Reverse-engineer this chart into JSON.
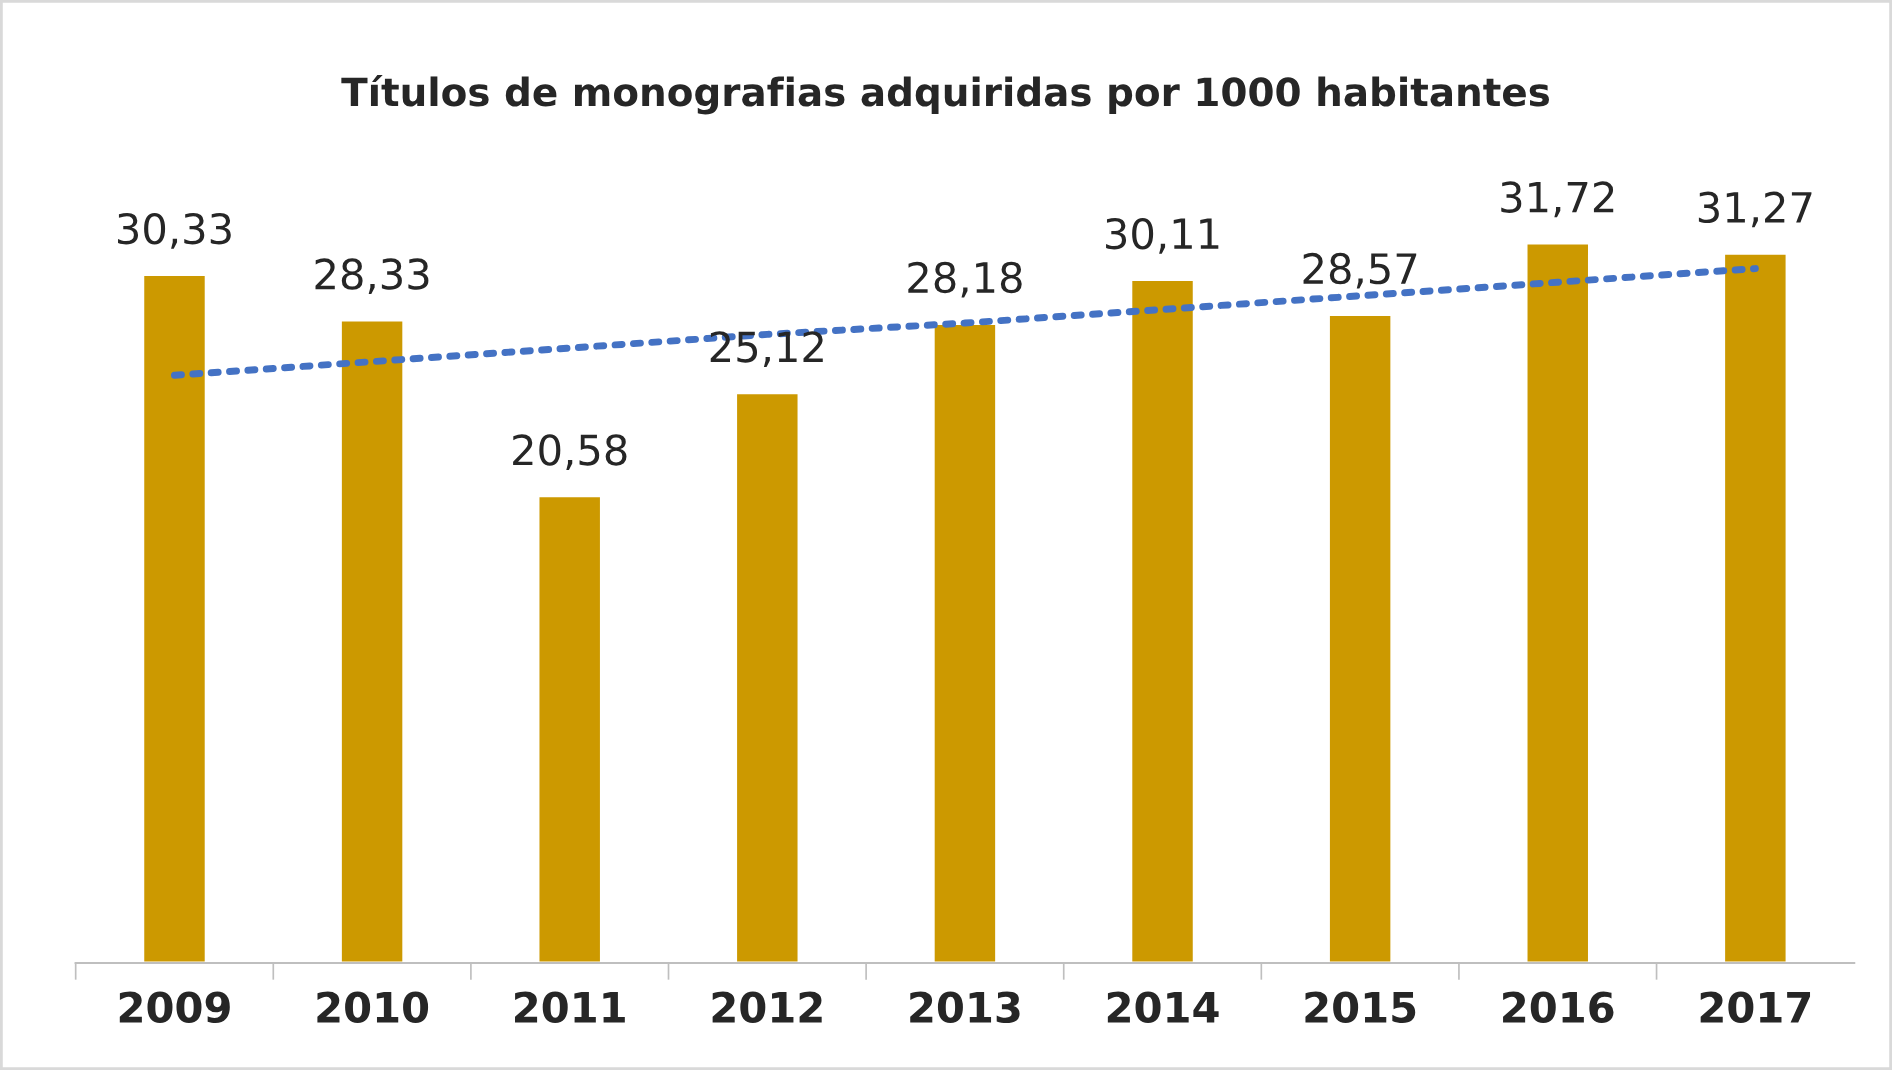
{
  "chart_data": {
    "type": "bar",
    "title": "Títulos de monografias adquiridas por 1000 habitantes",
    "categories": [
      "2009",
      "2010",
      "2011",
      "2012",
      "2013",
      "2014",
      "2015",
      "2016",
      "2017"
    ],
    "series": [
      {
        "color": "#cc9900",
        "values": [
          30.33,
          28.33,
          20.58,
          25.12,
          28.18,
          30.11,
          28.57,
          31.72,
          31.27
        ],
        "value_labels": [
          "30,33",
          "28,33",
          "20,58",
          "25,12",
          "28,18",
          "30,11",
          "28,57",
          "31,72",
          "31,27"
        ]
      },
      {
        "type": "line",
        "color": "#4472c4",
        "line_style": "dotted",
        "marker": "none",
        "values": [
          25.9,
          26.5,
          27.1,
          27.7,
          28.2,
          28.8,
          29.4,
          30.0,
          30.6
        ]
      }
    ],
    "grid": false,
    "legend": false,
    "tick_labels": "x"
  }
}
